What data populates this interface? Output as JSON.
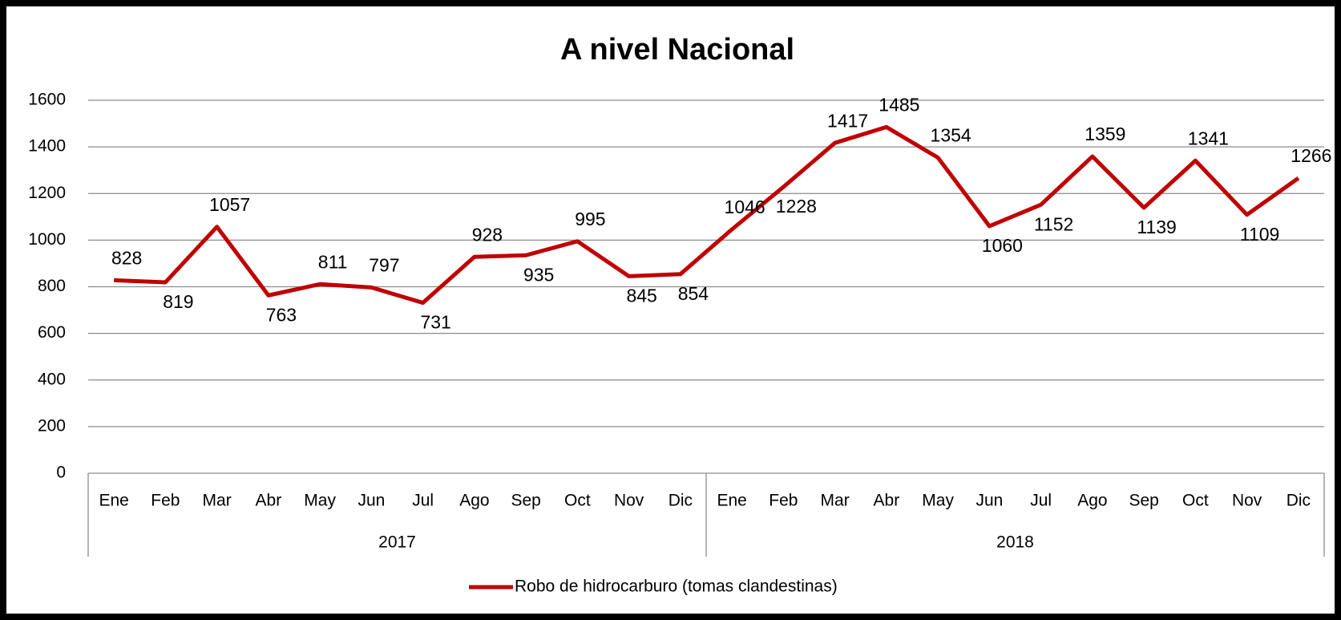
{
  "chart_data": {
    "type": "line",
    "title": "A nivel Nacional",
    "categories": [
      "Ene",
      "Feb",
      "Mar",
      "Abr",
      "May",
      "Jun",
      "Jul",
      "Ago",
      "Sep",
      "Oct",
      "Nov",
      "Dic",
      "Ene",
      "Feb",
      "Mar",
      "Abr",
      "May",
      "Jun",
      "Jul",
      "Ago",
      "Sep",
      "Oct",
      "Nov",
      "Dic"
    ],
    "groups": [
      "2017",
      "2018"
    ],
    "series": [
      {
        "name": "Robo de hidrocarburo (tomas clandestinas)",
        "color": "#c00000",
        "values": [
          828,
          819,
          1057,
          763,
          811,
          797,
          731,
          928,
          935,
          995,
          845,
          854,
          1046,
          1228,
          1417,
          1485,
          1354,
          1060,
          1152,
          1359,
          1139,
          1341,
          1109,
          1266
        ]
      }
    ],
    "ylim": [
      0,
      1600
    ],
    "yticks": [
      0,
      200,
      400,
      600,
      800,
      1000,
      1200,
      1400,
      1600
    ],
    "grid": true,
    "legend": "bottom"
  }
}
